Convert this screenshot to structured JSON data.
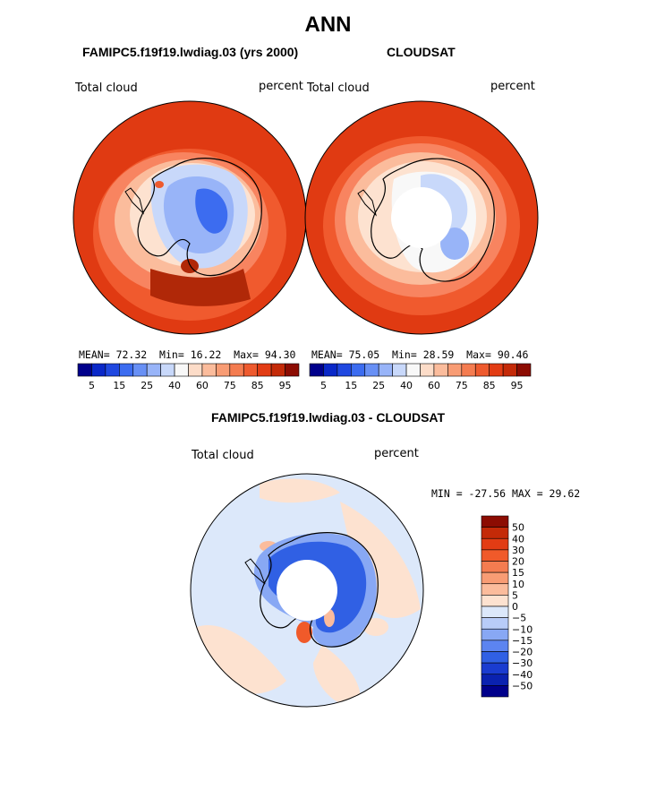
{
  "header": {
    "title": "ANN"
  },
  "panels": {
    "model": {
      "title": "FAMIPC5.f19f19.lwdiag.03 (yrs 2000)",
      "variable": "Total cloud",
      "units": "percent",
      "mean_label": "MEAN=",
      "mean": "72.32",
      "min_label": "Min=",
      "min": "16.22",
      "max_label": "Max=",
      "max": "94.30"
    },
    "obs": {
      "title": "CLOUDSAT",
      "variable": "Total cloud",
      "units": "percent",
      "mean_label": "MEAN=",
      "mean": "75.05",
      "min_label": "Min=",
      "min": "28.59",
      "max_label": "Max=",
      "max": "90.46"
    },
    "diff": {
      "title": "FAMIPC5.f19f19.lwdiag.03 - CLOUDSAT",
      "variable": "Total cloud",
      "units": "percent",
      "minmax": "MIN = -27.56 MAX =  29.62"
    }
  },
  "colorbars": {
    "abs_ticks": [
      "5",
      "15",
      "25",
      "40",
      "60",
      "75",
      "85",
      "95"
    ],
    "abs_colors": [
      "#00008b",
      "#0a28c8",
      "#2048e0",
      "#3c6cf0",
      "#6890f5",
      "#98b4f8",
      "#c8d8fa",
      "#f8f8f8",
      "#fcdcc8",
      "#fbbc9c",
      "#f89c74",
      "#f47c50",
      "#ee5a2e",
      "#e23c14",
      "#c42a08",
      "#8c0c02"
    ],
    "diff_labels": [
      "50",
      "40",
      "30",
      "20",
      "15",
      "10",
      "5",
      "0",
      "−5",
      "−10",
      "−15",
      "−20",
      "−30",
      "−40",
      "−50"
    ],
    "diff_colors": [
      "#8c0c02",
      "#c42a08",
      "#e23c14",
      "#f05a2a",
      "#f47c50",
      "#f89c74",
      "#fbbc9c",
      "#fde2d0",
      "#dce8fa",
      "#b8ccf8",
      "#88a8f4",
      "#5c84f0",
      "#3060e4",
      "#1a3cd0",
      "#0a22b0",
      "#00008b"
    ]
  }
}
